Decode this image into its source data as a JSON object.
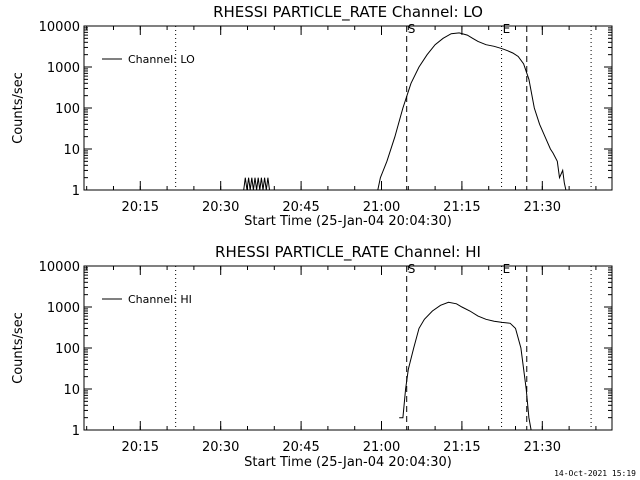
{
  "chart_data": [
    {
      "type": "line",
      "title": "RHESSI PARTICLE_RATE Channel: LO",
      "xlabel": "Start Time (25-Jan-04 20:04:30)",
      "ylabel": "Counts/sec",
      "y_scale": "log",
      "ylim": [
        1,
        10000
      ],
      "x_unit": "minutes after 20:04:30",
      "xlim": [
        0,
        98.5
      ],
      "x_ticks": [
        {
          "label": "20:15",
          "x": 10.5
        },
        {
          "label": "20:30",
          "x": 25.5
        },
        {
          "label": "20:45",
          "x": 40.5
        },
        {
          "label": "21:00",
          "x": 55.5
        },
        {
          "label": "21:15",
          "x": 70.5
        },
        {
          "label": "21:30",
          "x": 85.5
        }
      ],
      "y_ticks": [
        "1",
        "10",
        "100",
        "1000",
        "10000"
      ],
      "legend": {
        "entries": [
          "Channel: LO"
        ],
        "placement": "top-left"
      },
      "markers": [
        {
          "label": "",
          "style": "dotted",
          "x": 17.1
        },
        {
          "label": "S",
          "style": "dashed",
          "x": 60.2
        },
        {
          "label": "E",
          "style": "dotted",
          "x": 77.9
        },
        {
          "label": "",
          "style": "dashed",
          "x": 82.6
        },
        {
          "label": "",
          "style": "dotted",
          "x": 94.6
        }
      ],
      "series": [
        {
          "name": "Channel: LO",
          "x": [
            0,
            29.8,
            30.1,
            30.4,
            30.7,
            31.0,
            31.3,
            31.6,
            31.9,
            32.2,
            32.5,
            32.8,
            33.1,
            33.4,
            33.7,
            34.0,
            34.3,
            34.6,
            54.8,
            55.3,
            56.5,
            58.0,
            59.5,
            61.0,
            62.5,
            64.0,
            65.5,
            67.0,
            68.5,
            70.0,
            71.5,
            72.5,
            73.5,
            75.0,
            76.5,
            78.0,
            79.0,
            80.0,
            81.0,
            82.0,
            83.0,
            84.0,
            85.0,
            86.0,
            87.0,
            87.5,
            88.3,
            88.7,
            89.3,
            89.6,
            89.9
          ],
          "values": [
            1,
            1,
            2,
            1,
            2,
            1,
            2,
            1,
            2,
            1,
            2,
            1,
            2,
            1,
            2,
            1,
            2,
            1,
            1,
            2,
            5,
            20,
            100,
            400,
            1000,
            2000,
            3500,
            5000,
            6500,
            6800,
            6000,
            5000,
            4200,
            3500,
            3200,
            2800,
            2500,
            2200,
            1800,
            1200,
            500,
            100,
            40,
            20,
            10,
            8,
            5,
            2,
            3,
            1.5,
            1
          ]
        }
      ]
    },
    {
      "type": "line",
      "title": "RHESSI PARTICLE_RATE Channel: HI",
      "xlabel": "Start Time (25-Jan-04 20:04:30)",
      "ylabel": "Counts/sec",
      "y_scale": "log",
      "ylim": [
        1,
        10000
      ],
      "x_unit": "minutes after 20:04:30",
      "xlim": [
        0,
        98.5
      ],
      "x_ticks": [
        {
          "label": "20:15",
          "x": 10.5
        },
        {
          "label": "20:30",
          "x": 25.5
        },
        {
          "label": "20:45",
          "x": 40.5
        },
        {
          "label": "21:00",
          "x": 55.5
        },
        {
          "label": "21:15",
          "x": 70.5
        },
        {
          "label": "21:30",
          "x": 85.5
        }
      ],
      "y_ticks": [
        "1",
        "10",
        "100",
        "1000",
        "10000"
      ],
      "legend": {
        "entries": [
          "Channel: HI"
        ],
        "placement": "top-left"
      },
      "markers": [
        {
          "label": "",
          "style": "dotted",
          "x": 17.1
        },
        {
          "label": "S",
          "style": "dashed",
          "x": 60.2
        },
        {
          "label": "E",
          "style": "dotted",
          "x": 77.9
        },
        {
          "label": "",
          "style": "dashed",
          "x": 82.6
        },
        {
          "label": "",
          "style": "dotted",
          "x": 94.6
        }
      ],
      "series": [
        {
          "name": "Channel: HI",
          "x": [
            58.8,
            59.5,
            60.0,
            60.5,
            61.5,
            62.5,
            63.5,
            65.0,
            66.5,
            68.0,
            69.5,
            70.5,
            72.0,
            73.5,
            75.0,
            76.5,
            78.0,
            79.5,
            80.5,
            81.5,
            82.5,
            83.0,
            83.4
          ],
          "values": [
            2,
            2,
            10,
            30,
            100,
            300,
            500,
            800,
            1100,
            1300,
            1200,
            1000,
            800,
            600,
            500,
            450,
            420,
            400,
            300,
            100,
            10,
            2,
            1
          ]
        }
      ]
    }
  ],
  "footer": {
    "timestamp": "14-Oct-2021 15:19"
  }
}
